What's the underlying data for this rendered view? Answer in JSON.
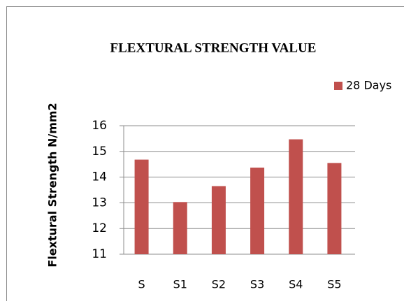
{
  "chart_data": {
    "type": "bar",
    "title": "FLEXTURAL STRENGTH VALUE",
    "y_label": "Flextural Strength N/mm2",
    "categories": [
      "S",
      "S1",
      "S2",
      "S3",
      "S4",
      "S5"
    ],
    "series": [
      {
        "name": "28 Days",
        "color": "#c0504d",
        "values": [
          14.68,
          13.03,
          13.65,
          14.37,
          15.47,
          14.55
        ]
      }
    ],
    "ylim": [
      11,
      16
    ],
    "yticks": [
      11,
      12,
      13,
      14,
      15,
      16
    ],
    "grid": true,
    "legend": "right"
  }
}
